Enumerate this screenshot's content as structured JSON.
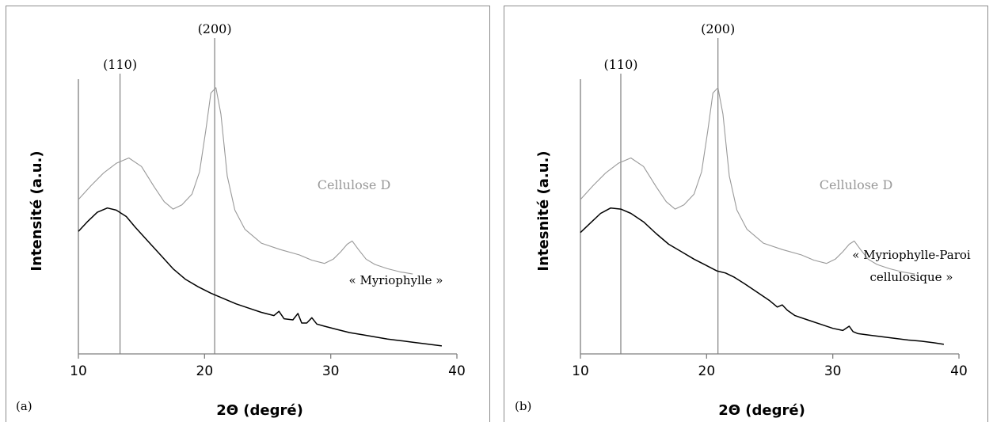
{
  "chart_data": [
    {
      "type": "line",
      "panel_label": "(a)",
      "xlabel": "2Θ (degré)",
      "ylabel": "Intensité (a.u.)",
      "xlim": [
        10,
        40
      ],
      "xticks": [
        "10",
        "20",
        "30",
        "40"
      ],
      "y_ticks_shown": false,
      "grid": false,
      "reference_lines": [
        {
          "x": 13.3,
          "label": "(110)"
        },
        {
          "x": 20.8,
          "label": "(200)"
        }
      ],
      "series": [
        {
          "name": "Cellulose D",
          "color": "#999999",
          "x": [
            10.0,
            11.0,
            12.0,
            13.0,
            14.0,
            15.0,
            16.0,
            16.8,
            17.5,
            18.2,
            19.0,
            19.6,
            20.1,
            20.5,
            20.9,
            21.3,
            21.8,
            22.4,
            23.2,
            24.5,
            26.0,
            27.5,
            28.5,
            29.5,
            30.2,
            30.8,
            31.3,
            31.7,
            32.2,
            32.8,
            33.5,
            34.5,
            35.5,
            36.5
          ],
          "y": [
            14.5,
            15.8,
            17.0,
            17.9,
            18.4,
            17.6,
            15.7,
            14.3,
            13.6,
            14.0,
            15.0,
            17.1,
            21.0,
            24.5,
            25.0,
            22.5,
            16.7,
            13.5,
            11.7,
            10.4,
            9.8,
            9.3,
            8.8,
            8.5,
            8.9,
            9.6,
            10.3,
            10.6,
            9.8,
            8.9,
            8.4,
            8.0,
            7.7,
            7.5
          ]
        },
        {
          "name": "« Myriophylle »",
          "color": "#000000",
          "x": [
            10.0,
            10.7,
            11.5,
            12.3,
            13.0,
            13.8,
            14.5,
            15.5,
            16.5,
            17.5,
            18.5,
            19.5,
            20.5,
            21.5,
            22.5,
            23.5,
            24.5,
            25.5,
            25.9,
            26.3,
            27.0,
            27.4,
            27.7,
            28.1,
            28.5,
            28.9,
            29.5,
            30.5,
            31.5,
            32.5,
            33.5,
            34.5,
            35.5,
            36.5,
            37.5,
            38.8
          ],
          "y": [
            11.5,
            12.4,
            13.3,
            13.7,
            13.5,
            12.9,
            11.9,
            10.6,
            9.3,
            8.0,
            7.0,
            6.3,
            5.7,
            5.2,
            4.7,
            4.3,
            3.9,
            3.6,
            4.0,
            3.3,
            3.2,
            3.8,
            2.9,
            2.9,
            3.4,
            2.8,
            2.6,
            2.3,
            2.0,
            1.8,
            1.6,
            1.4,
            1.25,
            1.1,
            0.95,
            0.75
          ]
        }
      ]
    },
    {
      "type": "line",
      "panel_label": "(b)",
      "xlabel": "2Θ (degré)",
      "ylabel": "Intesnité (a.u.)",
      "xlim": [
        10,
        40
      ],
      "xticks": [
        "10",
        "20",
        "30",
        "40"
      ],
      "y_ticks_shown": false,
      "grid": false,
      "reference_lines": [
        {
          "x": 13.2,
          "label": "(110)"
        },
        {
          "x": 20.9,
          "label": "(200)"
        }
      ],
      "series": [
        {
          "name": "Cellulose D",
          "color": "#999999",
          "x": [
            10.0,
            11.0,
            12.0,
            13.0,
            14.0,
            15.0,
            16.0,
            16.8,
            17.5,
            18.2,
            19.0,
            19.6,
            20.1,
            20.5,
            20.9,
            21.3,
            21.8,
            22.4,
            23.2,
            24.5,
            26.0,
            27.5,
            28.5,
            29.5,
            30.2,
            30.8,
            31.3,
            31.7,
            32.2,
            32.8,
            33.5,
            34.5,
            35.5,
            36.5
          ],
          "y": [
            14.5,
            15.8,
            17.0,
            17.9,
            18.4,
            17.6,
            15.7,
            14.3,
            13.6,
            14.0,
            15.0,
            17.1,
            21.0,
            24.5,
            25.0,
            22.5,
            16.7,
            13.5,
            11.7,
            10.4,
            9.8,
            9.3,
            8.8,
            8.5,
            8.9,
            9.6,
            10.3,
            10.6,
            9.8,
            8.9,
            8.4,
            8.0,
            7.7,
            7.5
          ]
        },
        {
          "name": "« Myriophylle-Paroi cellulosique »",
          "color": "#000000",
          "x": [
            10.0,
            10.8,
            11.6,
            12.4,
            13.2,
            14.0,
            15.0,
            16.0,
            17.0,
            18.0,
            19.0,
            20.0,
            20.8,
            21.5,
            22.2,
            23.0,
            24.0,
            25.0,
            25.6,
            26.0,
            26.4,
            27.0,
            28.0,
            29.0,
            30.0,
            30.8,
            31.3,
            31.6,
            32.0,
            33.0,
            34.0,
            35.0,
            36.0,
            37.0,
            38.0,
            38.8
          ],
          "y": [
            11.4,
            12.3,
            13.2,
            13.7,
            13.6,
            13.2,
            12.4,
            11.3,
            10.3,
            9.6,
            8.9,
            8.3,
            7.8,
            7.6,
            7.2,
            6.6,
            5.8,
            5.0,
            4.4,
            4.6,
            4.1,
            3.6,
            3.2,
            2.8,
            2.4,
            2.2,
            2.6,
            2.1,
            1.9,
            1.75,
            1.6,
            1.45,
            1.3,
            1.2,
            1.05,
            0.9
          ]
        }
      ]
    }
  ]
}
